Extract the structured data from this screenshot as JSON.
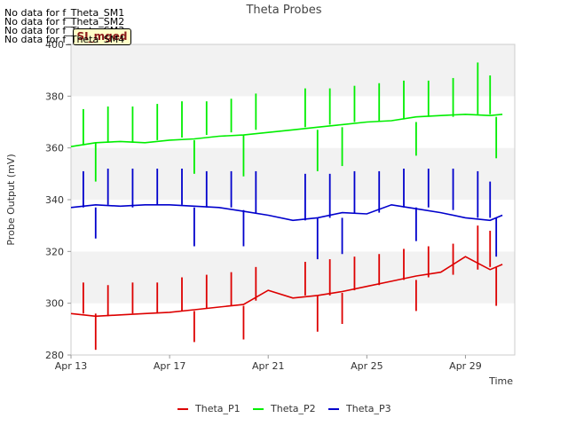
{
  "chart_data": {
    "type": "line",
    "title": "Theta Probes",
    "xlabel": "Time",
    "ylabel": "Probe Output (mV)",
    "ylim": [
      280,
      400
    ],
    "xlim": [
      "2023-04-13",
      "2023-05-01"
    ],
    "x_ticks": [
      "Apr 13",
      "Apr 17",
      "Apr 21",
      "Apr 25",
      "Apr 29"
    ],
    "y_ticks": [
      280,
      300,
      320,
      340,
      360,
      380,
      400
    ],
    "grid": "horizontal bands",
    "legend_position": "bottom",
    "no_data_messages": [
      "No data for f_Theta_SM1",
      "No data for f_Theta_SM2",
      "No data for f_Theta_SM3",
      "No data for f_Theta_SM4"
    ],
    "badge": "SI_mged",
    "series": [
      {
        "name": "Theta_P1",
        "color": "#dd0000",
        "x": [
          "2023-04-13",
          "2023-04-14",
          "2023-04-15",
          "2023-04-16",
          "2023-04-17",
          "2023-04-18",
          "2023-04-19",
          "2023-04-20",
          "2023-04-21",
          "2023-04-22",
          "2023-04-23",
          "2023-04-24",
          "2023-04-25",
          "2023-04-26",
          "2023-04-27",
          "2023-04-28",
          "2023-04-29",
          "2023-04-30",
          "2023-04-30T12:00"
        ],
        "values": [
          296,
          295,
          295.5,
          296,
          296.5,
          297.5,
          298.5,
          299.5,
          305,
          302,
          303,
          304.5,
          306.5,
          308.5,
          310.5,
          312,
          318,
          313,
          315
        ]
      },
      {
        "name": "Theta_P2",
        "color": "#00ee00",
        "x": [
          "2023-04-13",
          "2023-04-14",
          "2023-04-15",
          "2023-04-16",
          "2023-04-17",
          "2023-04-18",
          "2023-04-19",
          "2023-04-20",
          "2023-04-21",
          "2023-04-22",
          "2023-04-23",
          "2023-04-24",
          "2023-04-25",
          "2023-04-26",
          "2023-04-27",
          "2023-04-28",
          "2023-04-29",
          "2023-04-30",
          "2023-04-30T12:00"
        ],
        "values": [
          360.5,
          362,
          362.5,
          362,
          363,
          363.5,
          364.5,
          365,
          366,
          367,
          368,
          369,
          370,
          370.5,
          372,
          372.5,
          373,
          372.5,
          373
        ]
      },
      {
        "name": "Theta_P3",
        "color": "#0000cc",
        "x": [
          "2023-04-13",
          "2023-04-14",
          "2023-04-15",
          "2023-04-16",
          "2023-04-17",
          "2023-04-18",
          "2023-04-19",
          "2023-04-20",
          "2023-04-21",
          "2023-04-22",
          "2023-04-23",
          "2023-04-24",
          "2023-04-25",
          "2023-04-26",
          "2023-04-27",
          "2023-04-28",
          "2023-04-29",
          "2023-04-30",
          "2023-04-30T12:00"
        ],
        "values": [
          337,
          338,
          337.5,
          338,
          338,
          337.5,
          337,
          335.5,
          334,
          332,
          333,
          335,
          334.5,
          338,
          336.5,
          335,
          333,
          332,
          334
        ]
      }
    ],
    "spikes": {
      "Theta_P1": [
        {
          "x": "2023-04-13T12:00",
          "top": 308,
          "bottom": 296
        },
        {
          "x": "2023-04-14T00:00",
          "top": 296,
          "bottom": 282
        },
        {
          "x": "2023-04-14T12:00",
          "top": 307,
          "bottom": 295
        },
        {
          "x": "2023-04-15T12:00",
          "top": 308,
          "bottom": 296
        },
        {
          "x": "2023-04-16T12:00",
          "top": 308,
          "bottom": 296
        },
        {
          "x": "2023-04-17T12:00",
          "top": 310,
          "bottom": 297
        },
        {
          "x": "2023-04-18T00:00",
          "top": 297,
          "bottom": 285
        },
        {
          "x": "2023-04-18T12:00",
          "top": 311,
          "bottom": 298
        },
        {
          "x": "2023-04-19T12:00",
          "top": 312,
          "bottom": 299
        },
        {
          "x": "2023-04-20T00:00",
          "top": 299,
          "bottom": 286
        },
        {
          "x": "2023-04-20T12:00",
          "top": 314,
          "bottom": 301
        },
        {
          "x": "2023-04-22T12:00",
          "top": 316,
          "bottom": 303
        },
        {
          "x": "2023-04-23T00:00",
          "top": 303,
          "bottom": 289
        },
        {
          "x": "2023-04-23T12:00",
          "top": 317,
          "bottom": 303
        },
        {
          "x": "2023-04-24T00:00",
          "top": 304,
          "bottom": 292
        },
        {
          "x": "2023-04-24T12:00",
          "top": 318,
          "bottom": 305
        },
        {
          "x": "2023-04-25T12:00",
          "top": 319,
          "bottom": 307
        },
        {
          "x": "2023-04-26T12:00",
          "top": 321,
          "bottom": 309
        },
        {
          "x": "2023-04-27T00:00",
          "top": 309,
          "bottom": 297
        },
        {
          "x": "2023-04-27T12:00",
          "top": 322,
          "bottom": 310
        },
        {
          "x": "2023-04-28T12:00",
          "top": 323,
          "bottom": 311
        },
        {
          "x": "2023-04-29T12:00",
          "top": 330,
          "bottom": 313
        },
        {
          "x": "2023-04-30T00:00",
          "top": 328,
          "bottom": 314
        },
        {
          "x": "2023-04-30T06:00",
          "top": 314,
          "bottom": 299
        }
      ],
      "Theta_P2": [
        {
          "x": "2023-04-13T12:00",
          "top": 375,
          "bottom": 361
        },
        {
          "x": "2023-04-14T00:00",
          "top": 362,
          "bottom": 347
        },
        {
          "x": "2023-04-14T12:00",
          "top": 376,
          "bottom": 362
        },
        {
          "x": "2023-04-15T12:00",
          "top": 376,
          "bottom": 362
        },
        {
          "x": "2023-04-16T12:00",
          "top": 377,
          "bottom": 363
        },
        {
          "x": "2023-04-17T12:00",
          "top": 378,
          "bottom": 364
        },
        {
          "x": "2023-04-18T00:00",
          "top": 363,
          "bottom": 350
        },
        {
          "x": "2023-04-18T12:00",
          "top": 378,
          "bottom": 365
        },
        {
          "x": "2023-04-19T12:00",
          "top": 379,
          "bottom": 366
        },
        {
          "x": "2023-04-20T00:00",
          "top": 365,
          "bottom": 349
        },
        {
          "x": "2023-04-20T12:00",
          "top": 381,
          "bottom": 367
        },
        {
          "x": "2023-04-22T12:00",
          "top": 383,
          "bottom": 368
        },
        {
          "x": "2023-04-23T00:00",
          "top": 367,
          "bottom": 351
        },
        {
          "x": "2023-04-23T12:00",
          "top": 383,
          "bottom": 369
        },
        {
          "x": "2023-04-24T00:00",
          "top": 368,
          "bottom": 353
        },
        {
          "x": "2023-04-24T12:00",
          "top": 384,
          "bottom": 370
        },
        {
          "x": "2023-04-25T12:00",
          "top": 385,
          "bottom": 370
        },
        {
          "x": "2023-04-26T12:00",
          "top": 386,
          "bottom": 371
        },
        {
          "x": "2023-04-27T00:00",
          "top": 370,
          "bottom": 357
        },
        {
          "x": "2023-04-27T12:00",
          "top": 386,
          "bottom": 372
        },
        {
          "x": "2023-04-28T12:00",
          "top": 387,
          "bottom": 372
        },
        {
          "x": "2023-04-29T12:00",
          "top": 393,
          "bottom": 373
        },
        {
          "x": "2023-04-30T00:00",
          "top": 388,
          "bottom": 373
        },
        {
          "x": "2023-04-30T06:00",
          "top": 372,
          "bottom": 356
        }
      ],
      "Theta_P3": [
        {
          "x": "2023-04-13T12:00",
          "top": 351,
          "bottom": 337
        },
        {
          "x": "2023-04-14T00:00",
          "top": 337,
          "bottom": 325
        },
        {
          "x": "2023-04-14T12:00",
          "top": 352,
          "bottom": 338
        },
        {
          "x": "2023-04-15T12:00",
          "top": 352,
          "bottom": 337
        },
        {
          "x": "2023-04-16T12:00",
          "top": 352,
          "bottom": 338
        },
        {
          "x": "2023-04-17T12:00",
          "top": 352,
          "bottom": 338
        },
        {
          "x": "2023-04-18T00:00",
          "top": 337,
          "bottom": 322
        },
        {
          "x": "2023-04-18T12:00",
          "top": 351,
          "bottom": 337
        },
        {
          "x": "2023-04-19T12:00",
          "top": 351,
          "bottom": 337
        },
        {
          "x": "2023-04-20T00:00",
          "top": 336,
          "bottom": 322
        },
        {
          "x": "2023-04-20T12:00",
          "top": 351,
          "bottom": 335
        },
        {
          "x": "2023-04-22T12:00",
          "top": 350,
          "bottom": 332
        },
        {
          "x": "2023-04-23T00:00",
          "top": 333,
          "bottom": 317
        },
        {
          "x": "2023-04-23T12:00",
          "top": 350,
          "bottom": 333
        },
        {
          "x": "2023-04-24T00:00",
          "top": 333,
          "bottom": 319
        },
        {
          "x": "2023-04-24T12:00",
          "top": 351,
          "bottom": 335
        },
        {
          "x": "2023-04-25T12:00",
          "top": 351,
          "bottom": 335
        },
        {
          "x": "2023-04-26T12:00",
          "top": 352,
          "bottom": 337
        },
        {
          "x": "2023-04-27T00:00",
          "top": 337,
          "bottom": 324
        },
        {
          "x": "2023-04-27T12:00",
          "top": 352,
          "bottom": 337
        },
        {
          "x": "2023-04-28T12:00",
          "top": 352,
          "bottom": 336
        },
        {
          "x": "2023-04-29T12:00",
          "top": 351,
          "bottom": 333
        },
        {
          "x": "2023-04-30T00:00",
          "top": 347,
          "bottom": 333
        },
        {
          "x": "2023-04-30T06:00",
          "top": 333,
          "bottom": 318
        }
      ]
    }
  }
}
